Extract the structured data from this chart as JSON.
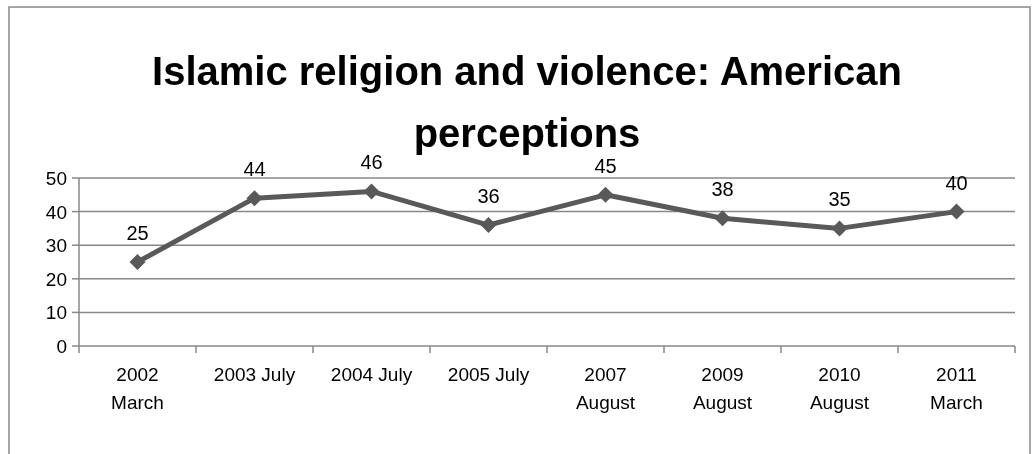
{
  "chart_data": {
    "type": "line",
    "title": "Islamic religion and violence: American perceptions",
    "categories": [
      "2002 March",
      "2003 July",
      "2004 July",
      "2005 July",
      "2007 August",
      "2009 August",
      "2010 August",
      "2011 March"
    ],
    "series": [
      {
        "color": "#595959",
        "values": [
          25,
          44,
          46,
          36,
          45,
          38,
          35,
          40
        ]
      }
    ],
    "ylim": [
      0,
      50
    ],
    "yticks": [
      0,
      10,
      20,
      30,
      40,
      50
    ],
    "grid": "y",
    "marker": "diamond",
    "data_labels": true
  }
}
